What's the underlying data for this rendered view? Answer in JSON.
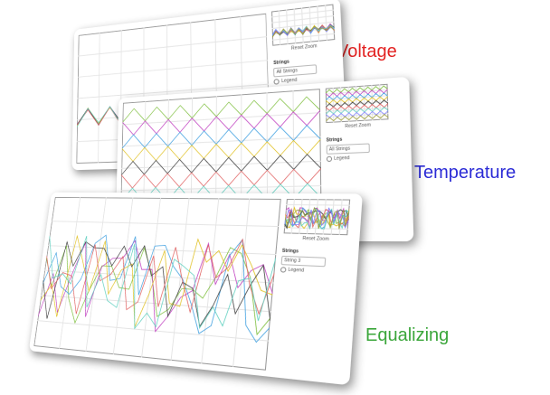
{
  "panels": [
    {
      "label": "Voltage",
      "reset": "Reset Zoom",
      "strings_label": "Strings",
      "select": "All Strings",
      "legend": "Legend"
    },
    {
      "label": "Temperature",
      "reset": "Reset Zoom",
      "strings_label": "Strings",
      "select": "All Strings",
      "legend": "Legend"
    },
    {
      "label": "Equalizing",
      "reset": "Reset Zoom",
      "strings_label": "Strings",
      "select": "String 3",
      "legend": "Legend"
    }
  ]
}
